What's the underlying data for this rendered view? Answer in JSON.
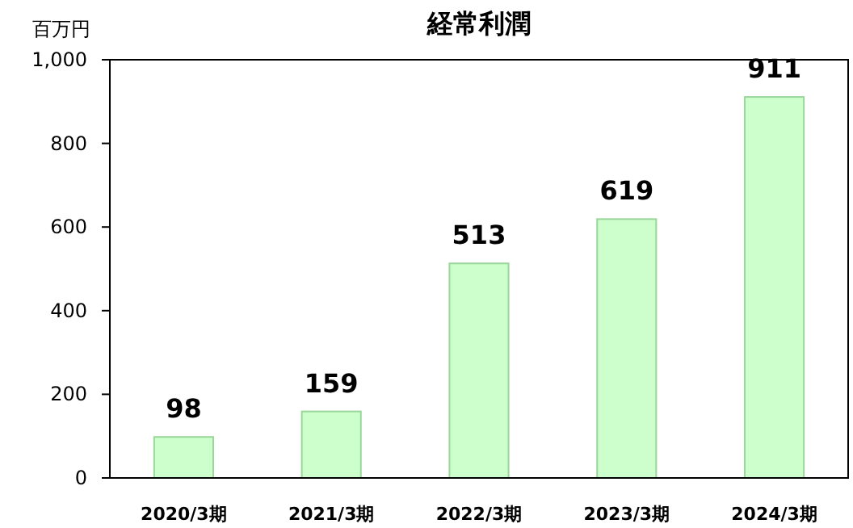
{
  "chart_data": {
    "type": "bar",
    "title": "経常利潤",
    "ylabel": "百万円",
    "categories": [
      "2020/3期",
      "2021/3期",
      "2022/3期",
      "2023/3期",
      "2024/3期"
    ],
    "values": [
      98,
      159,
      513,
      619,
      911
    ],
    "color": "#ccffcc",
    "ylim": [
      0,
      1000
    ],
    "yticks": [
      0,
      200,
      400,
      600,
      800,
      {
        "value": 1000,
        "label": "1,000"
      }
    ],
    "data_labels": true,
    "grid": false
  }
}
